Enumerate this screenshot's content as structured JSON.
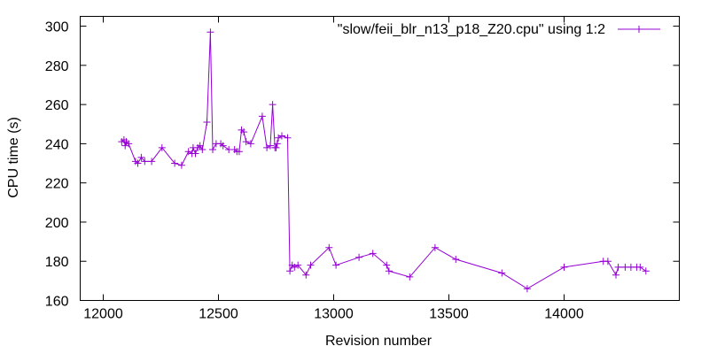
{
  "chart_data": {
    "type": "line",
    "title": "",
    "xlabel": "Revision number",
    "ylabel": "CPU time (s)",
    "xlim": [
      11900,
      14500
    ],
    "ylim": [
      160,
      305
    ],
    "xticks": [
      12000,
      12500,
      13000,
      13500,
      14000
    ],
    "yticks": [
      160,
      180,
      200,
      220,
      240,
      260,
      280,
      300
    ],
    "grid": false,
    "legend_position": "top-right",
    "series": [
      {
        "name": "\"slow/feii_blr_n13_p18_Z20.cpu\" using 1:2",
        "color": "#9400d3",
        "marker": "plus",
        "x": [
          12080,
          12090,
          12095,
          12100,
          12110,
          12140,
          12150,
          12165,
          12180,
          12210,
          12255,
          12310,
          12340,
          12370,
          12385,
          12390,
          12400,
          12410,
          12420,
          12430,
          12450,
          12465,
          12475,
          12490,
          12510,
          12520,
          12545,
          12570,
          12580,
          12590,
          12600,
          12610,
          12620,
          12640,
          12690,
          12710,
          12725,
          12735,
          12745,
          12750,
          12755,
          12760,
          12775,
          12800,
          12810,
          12820,
          12830,
          12845,
          12880,
          12900,
          12980,
          13010,
          13110,
          13170,
          13230,
          13240,
          13330,
          13440,
          13530,
          13730,
          13840,
          14000,
          14170,
          14190,
          14225,
          14235,
          14265,
          14290,
          14315,
          14330,
          14355
        ],
        "y": [
          241,
          242,
          239,
          241,
          240,
          231,
          230,
          233,
          231,
          231,
          238,
          230,
          229,
          236,
          235,
          238,
          235,
          238,
          239,
          237,
          251,
          297,
          237,
          240,
          240,
          239,
          237,
          237,
          236,
          236,
          247,
          246,
          241,
          240,
          254,
          238,
          239,
          260,
          238,
          238,
          240,
          243,
          244,
          243,
          175,
          178,
          177,
          178,
          173,
          178,
          187,
          178,
          182,
          184,
          178,
          175,
          172,
          187,
          181,
          174,
          166,
          177,
          180,
          180,
          173,
          177,
          177,
          177,
          177,
          177,
          175
        ]
      }
    ]
  }
}
